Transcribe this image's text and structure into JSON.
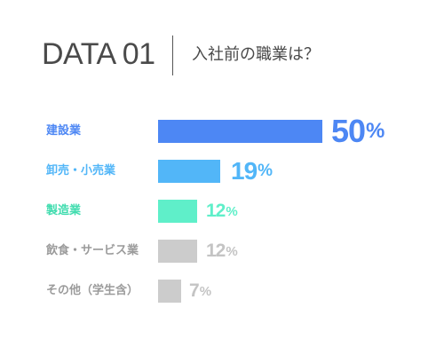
{
  "header": {
    "title": "DATA 01",
    "question": "入社前の職業は？"
  },
  "chart_data": {
    "type": "bar",
    "orientation": "horizontal",
    "unit": "%",
    "categories": [
      "建設業",
      "卸売・小売業",
      "製造業",
      "飲食・サービス業",
      "その他（学生含）"
    ],
    "values": [
      50,
      19,
      12,
      12,
      7
    ],
    "display_values": [
      "50",
      "19",
      "12",
      "12",
      "7"
    ],
    "colors": [
      "#4d87f4",
      "#52b6f8",
      "#5fefc9",
      "#cccccc",
      "#cccccc"
    ],
    "label_colors": [
      "#4d87f4",
      "#52b6f8",
      "#3fdcae",
      "#9b9b9b",
      "#9b9b9b"
    ],
    "xlim": [
      0,
      50
    ],
    "grid": false,
    "legend": "none"
  }
}
